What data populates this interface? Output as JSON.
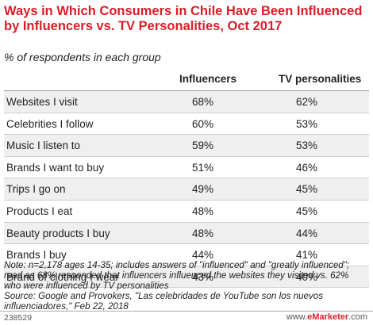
{
  "chart_data": {
    "type": "table",
    "title": "Ways in Which Consumers in Chile Have Been Influenced by Influencers vs. TV Personalities, Oct 2017",
    "subtitle": "% of respondents in each group",
    "columns": [
      "Influencers",
      "TV personalities"
    ],
    "rows": [
      {
        "label": "Websites I visit",
        "values": [
          "68%",
          "62%"
        ]
      },
      {
        "label": "Celebrities I follow",
        "values": [
          "60%",
          "53%"
        ]
      },
      {
        "label": "Music I listen to",
        "values": [
          "59%",
          "53%"
        ]
      },
      {
        "label": "Brands I want to buy",
        "values": [
          "51%",
          "46%"
        ]
      },
      {
        "label": "Trips I go on",
        "values": [
          "49%",
          "45%"
        ]
      },
      {
        "label": "Products I eat",
        "values": [
          "48%",
          "45%"
        ]
      },
      {
        "label": "Beauty products I buy",
        "values": [
          "48%",
          "44%"
        ]
      },
      {
        "label": "Brands I buy",
        "values": [
          "44%",
          "41%"
        ]
      },
      {
        "label": "Brand of clothing I wear",
        "values": [
          "43%",
          "40%"
        ]
      }
    ],
    "note": "Note: n=2,178 ages 14-35; includes answers of \"influenced\" and \"greatly influenced\"; read as 68% responded that influencers influenced the websites they visited vs. 62% who were influenced by TV personalities",
    "source": "Source: Google and Provokers, \"Las celebridades de YouTube son los nuevos influenciadores,\" Feb 22, 2018"
  },
  "footer": {
    "chart_id": "238529",
    "brand_prefix": "www.",
    "brand_name": "eMarketer",
    "brand_suffix": ".com"
  },
  "colors": {
    "title": "#d81e28",
    "stripe": "#efefef"
  }
}
